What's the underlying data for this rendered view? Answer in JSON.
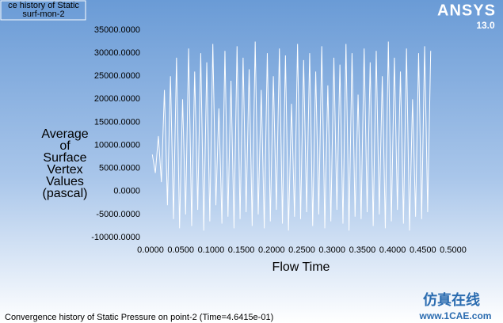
{
  "chart_data": {
    "type": "line",
    "title": "ce history of Static",
    "caption": "Convergence history of Static Pressure on point-2  (Time=4.6415e-01)",
    "xlabel": "Flow Time",
    "ylabel": [
      "Average",
      "of",
      "Surface",
      "Vertex",
      "Values",
      "(pascal)"
    ],
    "x": [
      0.003,
      0.008,
      0.013,
      0.018,
      0.023,
      0.028,
      0.033,
      0.038,
      0.043,
      0.048,
      0.053,
      0.058,
      0.063,
      0.068,
      0.073,
      0.078,
      0.083,
      0.088,
      0.093,
      0.098,
      0.103,
      0.108,
      0.113,
      0.118,
      0.123,
      0.128,
      0.133,
      0.138,
      0.143,
      0.148,
      0.153,
      0.158,
      0.163,
      0.168,
      0.173,
      0.178,
      0.183,
      0.188,
      0.193,
      0.198,
      0.203,
      0.208,
      0.213,
      0.218,
      0.223,
      0.228,
      0.233,
      0.238,
      0.243,
      0.248,
      0.253,
      0.258,
      0.263,
      0.268,
      0.273,
      0.278,
      0.283,
      0.288,
      0.293,
      0.298,
      0.303,
      0.308,
      0.313,
      0.318,
      0.323,
      0.328,
      0.333,
      0.338,
      0.343,
      0.348,
      0.353,
      0.358,
      0.363,
      0.368,
      0.373,
      0.378,
      0.383,
      0.388,
      0.393,
      0.398,
      0.403,
      0.408,
      0.413,
      0.418,
      0.423,
      0.428,
      0.433,
      0.438,
      0.443,
      0.448,
      0.453,
      0.458,
      0.463
    ],
    "series": [
      {
        "name": "surf-mon-2",
        "color": "#ffffff",
        "values": [
          8000,
          4000,
          12000,
          2000,
          22000,
          -3000,
          25000,
          -6000,
          29000,
          -8000,
          20000,
          -5000,
          31000,
          -7500,
          26000,
          -4000,
          30000,
          -8500,
          28000,
          -6500,
          32000,
          -3000,
          18000,
          -7000,
          30500,
          -5500,
          24000,
          -8000,
          31500,
          -6000,
          29000,
          -4500,
          26500,
          -7500,
          32500,
          -5000,
          22000,
          -8000,
          30000,
          -6500,
          25000,
          -4000,
          31000,
          -7000,
          29500,
          -8500,
          19000,
          -5500,
          32000,
          -6000,
          28500,
          -4500,
          30000,
          -7500,
          26000,
          -5000,
          31500,
          -8000,
          23000,
          -6500,
          29000,
          -4000,
          27500,
          -7000,
          32000,
          -8500,
          30000,
          -5500,
          21000,
          -6000,
          31000,
          -4500,
          28000,
          -7500,
          30500,
          -5000,
          25000,
          -8000,
          32500,
          -6500,
          29000,
          -4000,
          26000,
          -7000,
          31000,
          -8500,
          20000,
          -5500,
          30000,
          -6000,
          31500,
          -4500,
          30500
        ]
      }
    ],
    "xlim": [
      0,
      0.5
    ],
    "xticks": [
      {
        "value": 0,
        "label": "0.0000"
      },
      {
        "value": 0.05,
        "label": "0.0500"
      },
      {
        "value": 0.1,
        "label": "0.1000"
      },
      {
        "value": 0.15,
        "label": "0.1500"
      },
      {
        "value": 0.2,
        "label": "0.2000"
      },
      {
        "value": 0.25,
        "label": "0.2500"
      },
      {
        "value": 0.3,
        "label": "0.3000"
      },
      {
        "value": 0.35,
        "label": "0.3500"
      },
      {
        "value": 0.4,
        "label": "0.4000"
      },
      {
        "value": 0.45,
        "label": "0.4500"
      },
      {
        "value": 0.5,
        "label": "0.5000"
      }
    ],
    "ylim": [
      -10000,
      35000
    ],
    "yticks": [
      {
        "value": -10000,
        "label": "-10000.0000"
      },
      {
        "value": -5000,
        "label": "-5000.0000"
      },
      {
        "value": 0,
        "label": "0.0000"
      },
      {
        "value": 5000,
        "label": "5000.0000"
      },
      {
        "value": 10000,
        "label": "10000.0000"
      },
      {
        "value": 15000,
        "label": "15000.0000"
      },
      {
        "value": 20000,
        "label": "20000.0000"
      },
      {
        "value": 25000,
        "label": "25000.0000"
      },
      {
        "value": 30000,
        "label": "30000.0000"
      },
      {
        "value": 35000,
        "label": "35000.0000"
      }
    ],
    "grid": false
  },
  "branding": {
    "name": "ANSYS",
    "version": "13.0"
  },
  "watermark": {
    "title": "仿真在线",
    "url": "www.1CAE.com"
  }
}
